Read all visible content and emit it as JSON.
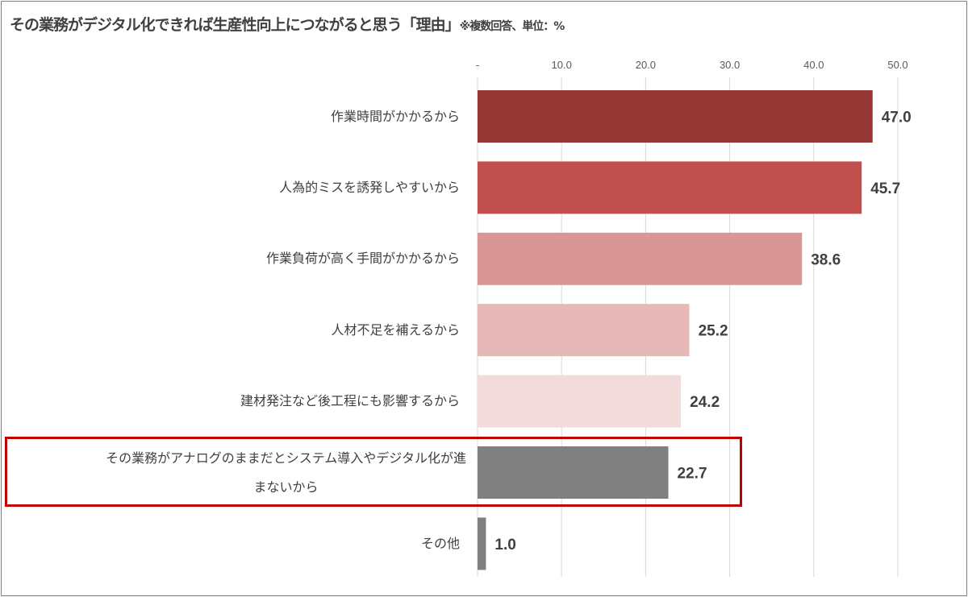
{
  "title": "その業務がデジタル化できれば生産性向上につながると思う「理由」",
  "title_note": "※複数回答、単位：%",
  "chart_data": {
    "type": "bar",
    "orientation": "horizontal",
    "title": "その業務がデジタル化できれば生産性向上につながると思う「理由」※複数回答、単位：%",
    "categories": [
      "作業時間がかかるから",
      "人為的ミスを誘発しやすいから",
      "作業負荷が高く手間がかかるから",
      "人材不足を補えるから",
      "建材発注など後工程にも影響するから",
      "その業務がアナログのままだとシステム導入やデジタル化が進まないから",
      "その他"
    ],
    "category_lines": [
      [
        "作業時間がかかるから"
      ],
      [
        "人為的ミスを誘発しやすいから"
      ],
      [
        "作業負荷が高く手間がかかるから"
      ],
      [
        "人材不足を補えるから"
      ],
      [
        "建材発注など後工程にも影響するから"
      ],
      [
        "その業務がアナログのままだとシステム導入やデジタル化が進",
        "まないから"
      ],
      [
        "その他"
      ]
    ],
    "values": [
      47.0,
      45.7,
      38.6,
      25.2,
      24.2,
      22.7,
      1.0
    ],
    "value_labels": [
      "47.0",
      "45.7",
      "38.6",
      "25.2",
      "24.2",
      "22.7",
      "1.0"
    ],
    "colors": [
      "#953735",
      "#c0504d",
      "#d99694",
      "#e6b9b8",
      "#f2dcdb",
      "#808080",
      "#808080"
    ],
    "xlim": [
      0,
      50
    ],
    "ticks": [
      0,
      10,
      20,
      30,
      40,
      50
    ],
    "tick_labels": [
      "-",
      "10.0",
      "20.0",
      "30.0",
      "40.0",
      "50.0"
    ],
    "axis_position": "top",
    "grid": true,
    "highlighted_category": "その業務がアナログのままだとシステム導入やデジタル化が進まないから"
  }
}
